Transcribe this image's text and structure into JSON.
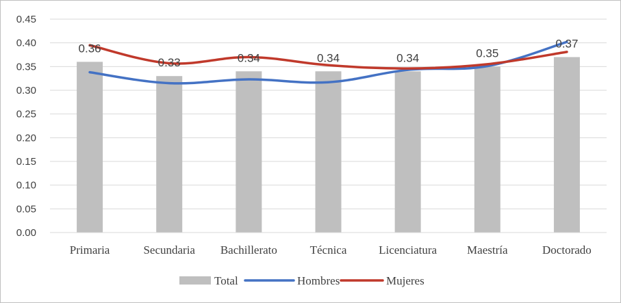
{
  "chart_data": {
    "type": "bar",
    "categories": [
      "Primaria",
      "Secundaria",
      "Bachillerato",
      "Técnica",
      "Licenciatura",
      "Maestría",
      "Doctorado"
    ],
    "series": [
      {
        "name": "Total",
        "type": "bar",
        "color": "#bfbfbf",
        "values": [
          0.36,
          0.33,
          0.34,
          0.34,
          0.34,
          0.35,
          0.37
        ],
        "data_labels": [
          "0.36",
          "0.33",
          "0.34",
          "0.34",
          "0.34",
          "0.35",
          "0.37"
        ]
      },
      {
        "name": "Hombres",
        "type": "line",
        "color": "#4472c4",
        "values": [
          0.338,
          0.315,
          0.323,
          0.317,
          0.343,
          0.351,
          0.402
        ]
      },
      {
        "name": "Mujeres",
        "type": "line",
        "color": "#c0392b",
        "values": [
          0.395,
          0.357,
          0.37,
          0.353,
          0.346,
          0.355,
          0.381
        ]
      }
    ],
    "yticks": [
      "0.00",
      "0.05",
      "0.10",
      "0.15",
      "0.20",
      "0.25",
      "0.30",
      "0.35",
      "0.40",
      "0.45"
    ],
    "ylim": [
      0,
      0.45
    ],
    "grid": true,
    "legend": "bottom"
  }
}
